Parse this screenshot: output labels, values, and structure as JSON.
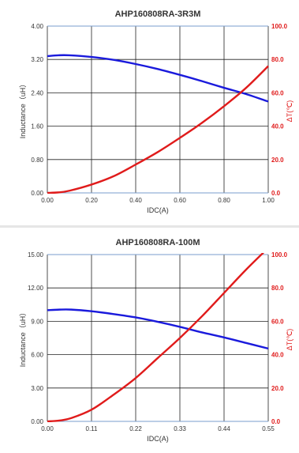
{
  "colors": {
    "inductance_line": "#1a1adc",
    "temp_line": "#e01b1b",
    "right_axis": "#e01b1b",
    "grid": "#222222"
  },
  "chart_data": [
    {
      "type": "line",
      "title": "AHP160808RA-3R3M",
      "xlabel": "IDC(A)",
      "ylabel": "Inductance（uH）",
      "y2label": "ΔT(℃)",
      "xlim": [
        0,
        1.0
      ],
      "ylim": [
        0,
        4.0
      ],
      "y2lim": [
        0,
        100
      ],
      "xticks": [
        "0.00",
        "0.20",
        "0.40",
        "0.60",
        "0.80",
        "1.00"
      ],
      "yticks": [
        "0.00",
        "0.80",
        "1.60",
        "2.40",
        "3.20",
        "4.00"
      ],
      "y2ticks": [
        "0.0",
        "20.0",
        "40.0",
        "60.0",
        "80.0",
        "100.0"
      ],
      "grid": true,
      "series": [
        {
          "axis": "left",
          "color": "#1a1adc",
          "x": [
            0,
            0.05,
            0.1,
            0.2,
            0.3,
            0.4,
            0.5,
            0.6,
            0.7,
            0.8,
            0.9,
            1.0
          ],
          "y": [
            3.28,
            3.3,
            3.3,
            3.26,
            3.19,
            3.09,
            2.97,
            2.83,
            2.68,
            2.52,
            2.37,
            2.19
          ]
        },
        {
          "axis": "right",
          "color": "#e01b1b",
          "x": [
            0,
            0.05,
            0.1,
            0.2,
            0.3,
            0.4,
            0.5,
            0.6,
            0.7,
            0.8,
            0.9,
            1.0
          ],
          "y": [
            0,
            0.3,
            1.3,
            5,
            10,
            17,
            24.5,
            33,
            42,
            52,
            63,
            76
          ]
        }
      ]
    },
    {
      "type": "line",
      "title": "AHP160808RA-100M",
      "xlabel": "IDC(A)",
      "ylabel": "Inductance（uH）",
      "y2label": "ΔT(℃)",
      "xlim": [
        0,
        0.55
      ],
      "ylim": [
        0,
        15.0
      ],
      "y2lim": [
        0,
        100
      ],
      "xticks": [
        "0.00",
        "0.11",
        "0.22",
        "0.33",
        "0.44",
        "0.55"
      ],
      "yticks": [
        "0.00",
        "3.00",
        "6.00",
        "9.00",
        "12.00",
        "15.00"
      ],
      "y2ticks": [
        "0.0",
        "20.0",
        "40.0",
        "60.0",
        "80.0",
        "100.0"
      ],
      "grid": true,
      "series": [
        {
          "axis": "left",
          "color": "#1a1adc",
          "x": [
            0,
            0.03,
            0.06,
            0.11,
            0.165,
            0.22,
            0.275,
            0.33,
            0.385,
            0.44,
            0.495,
            0.55
          ],
          "y": [
            10.0,
            10.05,
            10.05,
            9.9,
            9.65,
            9.35,
            8.95,
            8.5,
            8.0,
            7.55,
            7.05,
            6.55
          ]
        },
        {
          "axis": "right",
          "color": "#e01b1b",
          "x": [
            0,
            0.03,
            0.06,
            0.11,
            0.165,
            0.22,
            0.275,
            0.33,
            0.385,
            0.44,
            0.495,
            0.55
          ],
          "y": [
            0,
            0.5,
            2,
            7,
            16,
            26,
            38,
            50,
            63,
            77,
            91,
            104
          ]
        }
      ]
    }
  ]
}
